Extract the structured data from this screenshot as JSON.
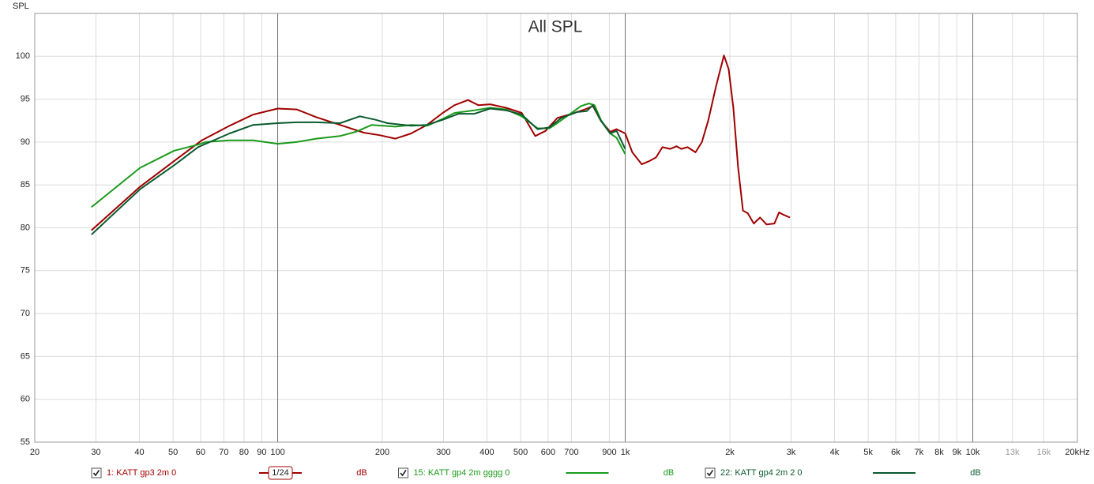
{
  "chart_data": {
    "type": "line",
    "title": "All SPL",
    "y_label": "SPL",
    "log_x": true,
    "grid": true,
    "xlim": [
      20,
      20000
    ],
    "ylim": [
      55,
      105
    ],
    "xticks": [
      20,
      30,
      40,
      50,
      60,
      70,
      80,
      90,
      100,
      200,
      300,
      400,
      500,
      600,
      700,
      900,
      {
        "value": 1000,
        "label": "1k"
      },
      {
        "value": 2000,
        "label": "2k"
      },
      {
        "value": 3000,
        "label": "3k"
      },
      {
        "value": 4000,
        "label": "4k"
      },
      {
        "value": 5000,
        "label": "5k"
      },
      {
        "value": 6000,
        "label": "6k"
      },
      {
        "value": 7000,
        "label": "7k"
      },
      {
        "value": 8000,
        "label": "8k"
      },
      {
        "value": 9000,
        "label": "9k"
      },
      {
        "value": 10000,
        "label": "10k"
      },
      {
        "value": 13000,
        "label": "13k"
      },
      {
        "value": 16000,
        "label": "16k"
      },
      {
        "value": 20000,
        "label": "20kHz"
      }
    ],
    "yticks": [
      55,
      60,
      65,
      70,
      75,
      80,
      85,
      90,
      95,
      100
    ],
    "smoothing": "1/24",
    "unit": "dB",
    "series": [
      {
        "name": "1: KATT gp3 2m 0",
        "color": "#a00000",
        "x": [
          29.1,
          40.2,
          50.4,
          60.5,
          72.7,
          85.0,
          100,
          113.4,
          129.2,
          151.2,
          176.9,
          196.4,
          218.1,
          242.1,
          268.9,
          298.5,
          322.9,
          352.9,
          377.9,
          408.7,
          453.7,
          503.8,
          550.8,
          589.7,
          637.6,
          689.8,
          765.9,
          807.0,
          850.3,
          905.2,
          944.1,
          1000,
          1048,
          1116,
          1176,
          1226,
          1279,
          1347,
          1405,
          1450,
          1512,
          1593,
          1662,
          1733,
          1825,
          1923,
          1984,
          2047,
          2113,
          2181,
          2251,
          2344,
          2443,
          2550,
          2686,
          2771,
          2860,
          2978
        ],
        "values": [
          79.7,
          84.8,
          87.8,
          90.2,
          91.9,
          93.2,
          93.9,
          93.8,
          92.9,
          92.0,
          91.1,
          90.8,
          90.4,
          91.0,
          92.0,
          93.4,
          94.3,
          94.9,
          94.3,
          94.4,
          94.0,
          93.4,
          90.7,
          91.3,
          92.8,
          93.2,
          93.8,
          94.2,
          92.5,
          91.2,
          91.5,
          91.0,
          88.8,
          87.4,
          87.8,
          88.2,
          89.4,
          89.2,
          89.5,
          89.2,
          89.4,
          88.8,
          90.0,
          92.5,
          96.5,
          100.1,
          98.5,
          94.0,
          87.0,
          82.0,
          81.7,
          80.5,
          81.2,
          80.4,
          80.5,
          81.8,
          81.5,
          81.2
        ]
      },
      {
        "name": "15: KATT gp4 2m gggg 0",
        "color": "#1a9a1a",
        "x": [
          29.1,
          40.2,
          50.4,
          59.0,
          62.1,
          72.7,
          85.0,
          100,
          113.4,
          129.2,
          151.2,
          167.9,
          186.5,
          218.1,
          242.1,
          268.9,
          298.5,
          322.9,
          368.1,
          408.7,
          453.7,
          503.8,
          559.6,
          605.0,
          637.6,
          689.8,
          746.2,
          786.3,
          815.5,
          850.3,
          905.2,
          944.1,
          1000
        ],
        "values": [
          82.4,
          87.0,
          89.0,
          89.7,
          90.0,
          90.2,
          90.2,
          89.8,
          90.0,
          90.4,
          90.7,
          91.2,
          92.0,
          91.8,
          92.0,
          91.9,
          92.7,
          93.4,
          93.7,
          94.0,
          93.8,
          93.0,
          91.6,
          91.6,
          92.2,
          93.2,
          94.2,
          94.5,
          94.3,
          92.6,
          91.0,
          90.5,
          88.6
        ]
      },
      {
        "name": "22: KATT gp4 2m 2 0",
        "color": "#0a5a30",
        "x": [
          29.1,
          40.2,
          50.4,
          59.0,
          72.7,
          85.0,
          100,
          113.4,
          129.2,
          151.2,
          172.3,
          191.3,
          207.0,
          242.1,
          268.9,
          298.5,
          331.5,
          368.1,
          408.7,
          453.7,
          503.8,
          559.6,
          605.0,
          654.5,
          726.9,
          773.9,
          807.0,
          850.3,
          905.2,
          944.1,
          1000
        ],
        "values": [
          79.2,
          84.5,
          87.3,
          89.4,
          91.0,
          92.0,
          92.2,
          92.3,
          92.3,
          92.2,
          93.0,
          92.6,
          92.2,
          91.9,
          92.0,
          92.6,
          93.3,
          93.3,
          93.9,
          93.7,
          93.2,
          91.5,
          91.7,
          92.8,
          93.5,
          93.6,
          94.3,
          92.5,
          91.0,
          91.3,
          89.2
        ]
      }
    ]
  }
}
